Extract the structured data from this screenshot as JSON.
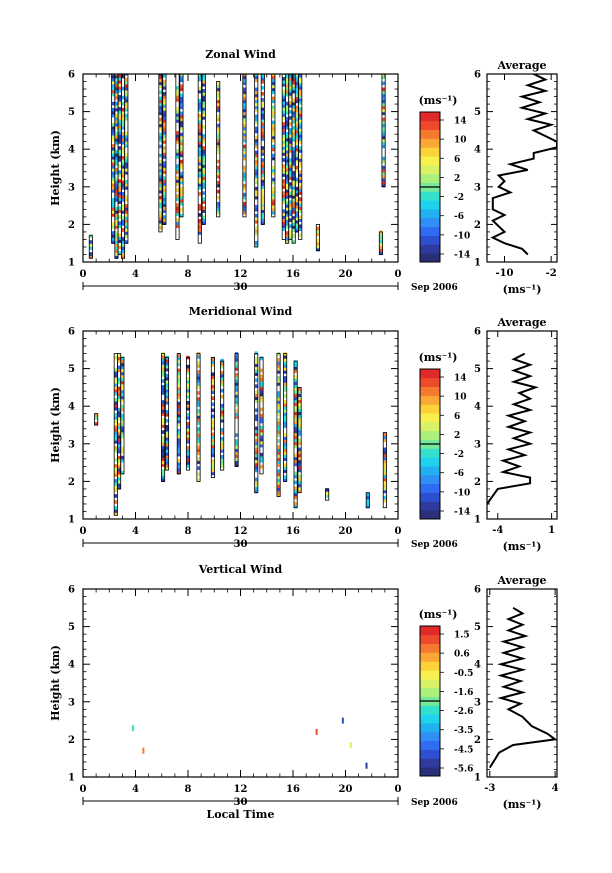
{
  "chart_data": [
    {
      "type": "heatmap",
      "title": "Zonal Wind",
      "ylabel": "Height (km)",
      "xlabel": "",
      "x_ticks": [
        "0",
        "4",
        "8",
        "12",
        "16",
        "20",
        "0"
      ],
      "xlim": [
        0,
        24
      ],
      "y_ticks": [
        "1",
        "2",
        "3",
        "4",
        "5",
        "6"
      ],
      "ylim": [
        1,
        6
      ],
      "date_label": "30",
      "date_right": "Sep 2006",
      "colorbar": {
        "unit": "(ms⁻¹)",
        "tick_labels": [
          "14",
          "10",
          "6",
          "2",
          "-2",
          "-6",
          "-10",
          "-14"
        ],
        "range": [
          -16,
          16
        ],
        "colors": [
          "#2a2f7a",
          "#2f3a9e",
          "#2e4fd0",
          "#2f6cf2",
          "#2f8ff5",
          "#22b0f0",
          "#1fd3ee",
          "#33e0cc",
          "#77e89a",
          "#aaf07a",
          "#d8f268",
          "#f7f04e",
          "#fcd23a",
          "#fba736",
          "#f57a30",
          "#ee4a2c",
          "#e02a2a"
        ]
      },
      "active_columns": [
        {
          "t": 0.6,
          "from": 1.1,
          "to": 1.7
        },
        {
          "t": 2.3,
          "from": 1.5,
          "to": 6.4
        },
        {
          "t": 2.55,
          "from": 1.1,
          "to": 6.4
        },
        {
          "t": 2.8,
          "from": 1.2,
          "to": 6.4
        },
        {
          "t": 3.05,
          "from": 1.1,
          "to": 6.4
        },
        {
          "t": 3.3,
          "from": 1.5,
          "to": 6.4
        },
        {
          "t": 5.9,
          "from": 1.8,
          "to": 6.3
        },
        {
          "t": 6.2,
          "from": 2.0,
          "to": 6.3
        },
        {
          "t": 7.2,
          "from": 1.6,
          "to": 6.4
        },
        {
          "t": 7.5,
          "from": 2.2,
          "to": 6.3
        },
        {
          "t": 8.9,
          "from": 1.5,
          "to": 6.4
        },
        {
          "t": 9.2,
          "from": 2.0,
          "to": 6.3
        },
        {
          "t": 10.3,
          "from": 2.2,
          "to": 5.8
        },
        {
          "t": 12.3,
          "from": 2.2,
          "to": 6.3
        },
        {
          "t": 13.2,
          "from": 1.4,
          "to": 6.4
        },
        {
          "t": 13.7,
          "from": 2.0,
          "to": 6.3
        },
        {
          "t": 14.5,
          "from": 2.2,
          "to": 6.3
        },
        {
          "t": 15.3,
          "from": 1.6,
          "to": 6.4
        },
        {
          "t": 15.55,
          "from": 1.5,
          "to": 6.4
        },
        {
          "t": 15.8,
          "from": 1.6,
          "to": 6.4
        },
        {
          "t": 16.05,
          "from": 1.5,
          "to": 6.4
        },
        {
          "t": 16.3,
          "from": 1.8,
          "to": 6.4
        },
        {
          "t": 16.55,
          "from": 1.6,
          "to": 6.3
        },
        {
          "t": 17.9,
          "from": 1.3,
          "to": 2.0
        },
        {
          "t": 22.7,
          "from": 1.2,
          "to": 1.8
        },
        {
          "t": 22.9,
          "from": 3.0,
          "to": 6.0
        }
      ],
      "profile": {
        "title": "Average",
        "xlabel": "(ms⁻¹)",
        "x_ticks": [
          "-10",
          "-2"
        ],
        "xlim": [
          -13,
          -1
        ],
        "y_ticks": [
          "1",
          "2",
          "3",
          "4",
          "5",
          "6"
        ],
        "ylim": [
          1,
          6
        ],
        "x": [
          -3,
          -6,
          -4,
          -5,
          -3,
          -6,
          -3,
          -7,
          -4,
          -7,
          -3,
          -6,
          -2,
          -5,
          -3,
          -1,
          -1,
          -5,
          -5,
          -9,
          -6,
          -11,
          -10,
          -11,
          -9,
          -12,
          -12,
          -12,
          -10,
          -12,
          -11,
          -10,
          -12,
          -10,
          -7,
          -6
        ],
        "y": [
          6.45,
          6.3,
          6.15,
          6.0,
          5.85,
          5.7,
          5.55,
          5.4,
          5.25,
          5.1,
          4.95,
          4.8,
          4.65,
          4.5,
          4.35,
          4.2,
          4.05,
          3.9,
          3.75,
          3.6,
          3.45,
          3.3,
          3.15,
          3.0,
          2.85,
          2.7,
          2.55,
          2.4,
          2.25,
          2.1,
          1.95,
          1.8,
          1.65,
          1.5,
          1.35,
          1.2
        ]
      }
    },
    {
      "type": "heatmap",
      "title": "Meridional Wind",
      "ylabel": "Height (km)",
      "xlabel": "",
      "x_ticks": [
        "0",
        "4",
        "8",
        "12",
        "16",
        "20",
        "0"
      ],
      "xlim": [
        0,
        24
      ],
      "y_ticks": [
        "1",
        "2",
        "3",
        "4",
        "5",
        "6"
      ],
      "ylim": [
        1,
        6
      ],
      "date_label": "30",
      "date_right": "Sep 2006",
      "colorbar": {
        "unit": "(ms⁻¹)",
        "tick_labels": [
          "14",
          "10",
          "6",
          "2",
          "-2",
          "-6",
          "-10",
          "-14"
        ],
        "range": [
          -16,
          16
        ],
        "colors": [
          "#2a2f7a",
          "#2f3a9e",
          "#2e4fd0",
          "#2f6cf2",
          "#2f8ff5",
          "#22b0f0",
          "#1fd3ee",
          "#33e0cc",
          "#77e89a",
          "#aaf07a",
          "#d8f268",
          "#f7f04e",
          "#fcd23a",
          "#fba736",
          "#f57a30",
          "#ee4a2c",
          "#e02a2a"
        ]
      },
      "active_columns": [
        {
          "t": 1.0,
          "from": 3.5,
          "to": 3.8
        },
        {
          "t": 2.5,
          "from": 1.1,
          "to": 5.4
        },
        {
          "t": 2.75,
          "from": 1.8,
          "to": 5.4
        },
        {
          "t": 3.0,
          "from": 2.2,
          "to": 5.3
        },
        {
          "t": 6.1,
          "from": 2.0,
          "to": 5.4
        },
        {
          "t": 6.4,
          "from": 2.3,
          "to": 5.3
        },
        {
          "t": 7.3,
          "from": 2.2,
          "to": 5.4
        },
        {
          "t": 8.0,
          "from": 2.3,
          "to": 5.3
        },
        {
          "t": 8.8,
          "from": 2.0,
          "to": 5.4
        },
        {
          "t": 9.9,
          "from": 2.1,
          "to": 5.3
        },
        {
          "t": 10.6,
          "from": 2.3,
          "to": 5.2
        },
        {
          "t": 11.7,
          "from": 2.4,
          "to": 5.4
        },
        {
          "t": 13.2,
          "from": 1.7,
          "to": 5.4
        },
        {
          "t": 13.6,
          "from": 2.2,
          "to": 5.3
        },
        {
          "t": 14.9,
          "from": 1.6,
          "to": 5.4
        },
        {
          "t": 15.4,
          "from": 2.0,
          "to": 5.4
        },
        {
          "t": 16.2,
          "from": 1.3,
          "to": 5.2
        },
        {
          "t": 16.5,
          "from": 1.7,
          "to": 4.5
        },
        {
          "t": 18.6,
          "from": 1.5,
          "to": 1.8
        },
        {
          "t": 21.7,
          "from": 1.3,
          "to": 1.7
        },
        {
          "t": 23.0,
          "from": 1.3,
          "to": 3.3
        }
      ],
      "profile": {
        "title": "Average",
        "xlabel": "(ms⁻¹)",
        "x_ticks": [
          "-4",
          "1"
        ],
        "xlim": [
          -5,
          1.5
        ],
        "y_ticks": [
          "1",
          "2",
          "3",
          "4",
          "5",
          "6"
        ],
        "ylim": [
          1,
          6
        ],
        "x": [
          -1.5,
          -2.5,
          -1,
          -2.5,
          -1,
          -2.5,
          -0.5,
          -2,
          -1,
          -2.5,
          -1,
          -3,
          -1.5,
          -3,
          -1,
          -2.5,
          -1,
          -3,
          -1.5,
          -3.5,
          -2,
          -3.5,
          -1,
          -1,
          -4,
          -4.5,
          -5
        ],
        "y": [
          5.4,
          5.25,
          5.1,
          4.95,
          4.8,
          4.65,
          4.5,
          4.35,
          4.2,
          4.05,
          3.9,
          3.75,
          3.6,
          3.45,
          3.3,
          3.15,
          3.0,
          2.85,
          2.7,
          2.55,
          2.4,
          2.25,
          2.1,
          1.95,
          1.8,
          1.6,
          1.4
        ]
      }
    },
    {
      "type": "heatmap",
      "title": "Vertical Wind",
      "ylabel": "Height (km)",
      "xlabel": "Local Time",
      "x_ticks": [
        "0",
        "4",
        "8",
        "12",
        "16",
        "20",
        "0"
      ],
      "xlim": [
        0,
        24
      ],
      "y_ticks": [
        "1",
        "2",
        "3",
        "4",
        "5",
        "6"
      ],
      "ylim": [
        1,
        6
      ],
      "date_label": "30",
      "date_right": "Sep 2006",
      "colorbar": {
        "unit": "(ms⁻¹)",
        "tick_labels": [
          "1.5",
          "0.6",
          "-0.5",
          "-1.6",
          "-2.6",
          "-3.5",
          "-4.5",
          "-5.6"
        ],
        "range": [
          -6.2,
          2.0
        ],
        "colors": [
          "#2a2f7a",
          "#2f3a9e",
          "#2e4fd0",
          "#2f6cf2",
          "#2f8ff5",
          "#22b0f0",
          "#1fd3ee",
          "#33e0cc",
          "#77e89a",
          "#aaf07a",
          "#d8f268",
          "#f7f04e",
          "#fcd23a",
          "#fba736",
          "#f57a30",
          "#ee4a2c",
          "#e02a2a"
        ]
      },
      "points": [
        {
          "t": 3.8,
          "h": 2.3,
          "v": -2.6
        },
        {
          "t": 4.6,
          "h": 1.7,
          "v": 0.6
        },
        {
          "t": 17.8,
          "h": 2.2,
          "v": 1.5
        },
        {
          "t": 19.8,
          "h": 2.5,
          "v": -5.0
        },
        {
          "t": 20.4,
          "h": 1.85,
          "v": -1.0
        },
        {
          "t": 21.6,
          "h": 1.3,
          "v": -5.5
        }
      ],
      "profile": {
        "title": "Average",
        "xlabel": "(ms⁻¹)",
        "x_ticks": [
          "-3",
          "4"
        ],
        "xlim": [
          -3.3,
          4.2
        ],
        "y_ticks": [
          "1",
          "2",
          "3",
          "4",
          "5",
          "6"
        ],
        "ylim": [
          1,
          6
        ],
        "x": [
          -0.5,
          0.5,
          -1,
          0.5,
          -1,
          0.8,
          -1.5,
          0.5,
          -1.5,
          0.5,
          -1.8,
          0.5,
          -1.8,
          0.3,
          -1.5,
          0.5,
          -1.8,
          0.3,
          -1,
          0.5,
          1.5,
          3.2,
          4.0,
          -0.5,
          -2,
          -2.5,
          -3
        ],
        "y": [
          5.5,
          5.35,
          5.2,
          5.05,
          4.9,
          4.75,
          4.6,
          4.45,
          4.3,
          4.15,
          4.0,
          3.85,
          3.7,
          3.55,
          3.4,
          3.25,
          3.1,
          2.95,
          2.8,
          2.6,
          2.35,
          2.15,
          2.0,
          1.85,
          1.65,
          1.45,
          1.25
        ]
      }
    }
  ]
}
